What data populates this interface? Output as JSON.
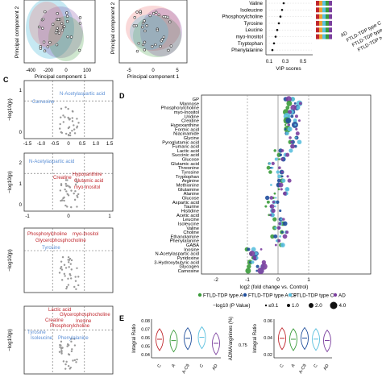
{
  "panel_letters": {
    "c": "C",
    "d": "D",
    "e": "E"
  },
  "pca": {
    "ylabel": "Principal component 2",
    "ylabel2": "Principal component 2",
    "left": {
      "xlabel": "Principal component 1",
      "ticks": [
        "-400",
        "-200",
        "0",
        "100"
      ]
    },
    "right": {
      "xlabel": "Principal component 1",
      "ticks": [
        "-5",
        "0",
        "5"
      ]
    }
  },
  "vip": {
    "metabolites": [
      "Valine",
      "Isoleucine",
      "Phosphorylcholine",
      "Tyrosine",
      "Leucine",
      "myo-Inositol",
      "Tryptophan",
      "Phenylalanine"
    ],
    "xlabel": "VIP scores",
    "ticks": [
      "0.1",
      "0.3",
      "0.5"
    ],
    "legend": [
      "AD",
      "FTLD-TDP type C",
      "FTLD-TDP type A",
      "FTLD-TDP type A-C9"
    ]
  },
  "volcano": {
    "ylabel": "−log10(p)",
    "plots": [
      {
        "labels": [
          {
            "text": "N-Acetylaspartic acid",
            "color": "#5b8fd6"
          },
          {
            "text": "Carnosine",
            "color": "#5b8fd6"
          }
        ],
        "ticks": [
          "-1.5",
          "-1.0",
          "-0.5",
          "0",
          "0.5",
          "1.0",
          "1.5"
        ],
        "yticks": [
          "1",
          "0"
        ]
      },
      {
        "labels": [
          {
            "text": "N-Acetylaspartic acid",
            "color": "#5b8fd6"
          },
          {
            "text": "Hypoxanthine",
            "color": "#c0272d"
          },
          {
            "text": "Creatine",
            "color": "#c0272d"
          },
          {
            "text": "Glutamic acid",
            "color": "#c0272d"
          },
          {
            "text": "myo-Inositol",
            "color": "#c0272d"
          }
        ],
        "ticks": [
          "-1",
          "0",
          "1"
        ],
        "yticks": [
          "2",
          "1",
          "0"
        ]
      },
      {
        "labels": [
          {
            "text": "Phosphorylcholine",
            "color": "#c0272d"
          },
          {
            "text": "myo-Inositol",
            "color": "#c0272d"
          },
          {
            "text": "Glycerophosphocholine",
            "color": "#c0272d"
          },
          {
            "text": "Tyrosine",
            "color": "#5b8fd6"
          }
        ],
        "ticks": [],
        "yticks": []
      },
      {
        "labels": [
          {
            "text": "Lactic acid",
            "color": "#c0272d"
          },
          {
            "text": "Glycerophosphocholine",
            "color": "#c0272d"
          },
          {
            "text": "Creatine",
            "color": "#c0272d"
          },
          {
            "text": "Inosine",
            "color": "#c0272d"
          },
          {
            "text": "Phosphorylcholine",
            "color": "#c0272d"
          },
          {
            "text": "Tyrosine",
            "color": "#5b8fd6"
          },
          {
            "text": "Isoleucine",
            "color": "#5b8fd6"
          },
          {
            "text": "Phenylalanine",
            "color": "#5b8fd6"
          }
        ],
        "ticks": [],
        "yticks": []
      }
    ]
  },
  "dotplot": {
    "metabolites": [
      "GP",
      "Mannose",
      "Phosphorylcholine",
      "myo-Inositol",
      "Uridine",
      "Creatine",
      "Hypoxanthine",
      "Formic acid",
      "Niacinamide",
      "Glycine",
      "Pyroglutamic acid",
      "Fumaric acid",
      "Lactic acid",
      "Succinic acid",
      "Glucose",
      "Glutamic acid",
      "Threonine",
      "Tyrosine",
      "Tryptophan",
      "Arginine",
      "Methionine",
      "Glutamine",
      "Alanine",
      "Glucose",
      "Aspartic acid",
      "Taurine",
      "Histidine",
      "Acetic acid",
      "Leucine",
      "Isoleucine",
      "Valine",
      "Choline",
      "Ethanolamine",
      "Phenylalanine",
      "GABA",
      "Inosine",
      "N-Acetylaspartic acid",
      "Pyridoxine",
      "3-Hydroxybutyric acid",
      "Glycogen",
      "Carnosine"
    ],
    "xlabel": "log2 (fold change vs. Control)",
    "ticks": [
      "-2",
      "-1",
      "0",
      "1"
    ],
    "legend_groups": [
      {
        "name": "FTLD-TDP type A",
        "color": "#3a9b3a"
      },
      {
        "name": "FTLD-TDP type A-C9",
        "color": "#1f4e9c"
      },
      {
        "name": "FTLD-TDP type C",
        "color": "#5bc0de"
      },
      {
        "name": "AD",
        "color": "#7b3f9e"
      }
    ],
    "size_legend_title": "−log10 (P Value)",
    "size_legend": [
      "≤0.1",
      "1.0",
      "2.0",
      "4.0"
    ]
  },
  "violin": {
    "ylabel_left": "Integral Ratio",
    "ylabel_mid": "ADMA/arginines (%)",
    "ylabel_right": "Integral Ratio",
    "yticks_left": [
      "0.08",
      "0.07",
      "0.06",
      "0.05",
      "0.04"
    ],
    "yticks_right": [
      "0.06",
      "0.04",
      "0.02"
    ],
    "ytick_mid": "0.75",
    "groups": [
      "C",
      "A",
      "A-C9",
      "C",
      "AD"
    ],
    "colors": [
      "#c0272d",
      "#3a9b3a",
      "#1f4e9c",
      "#5bc0de",
      "#7b3f9e"
    ]
  }
}
